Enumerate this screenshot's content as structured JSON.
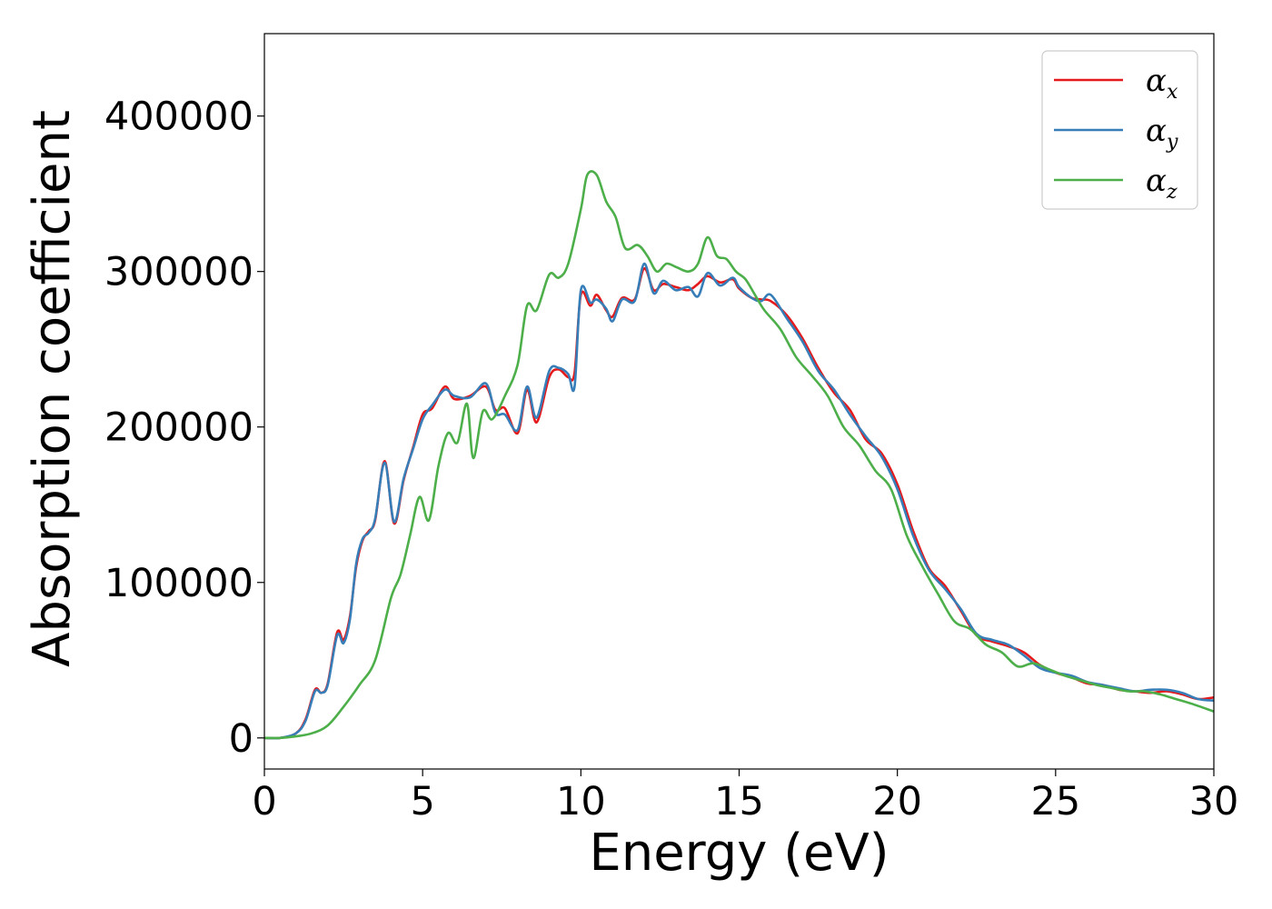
{
  "chart_data": {
    "type": "line",
    "title": "",
    "xlabel": "Energy (eV)",
    "ylabel": "Absorption coefficient",
    "xlim": [
      0,
      30
    ],
    "ylim": [
      -20000,
      453000
    ],
    "xticks": [
      0,
      5,
      10,
      15,
      20,
      25,
      30
    ],
    "xtick_labels": [
      "0",
      "5",
      "10",
      "15",
      "20",
      "25",
      "30"
    ],
    "yticks": [
      0,
      100000,
      200000,
      300000,
      400000
    ],
    "ytick_labels": [
      "0",
      "100000",
      "200000",
      "300000",
      "400000"
    ],
    "grid": false,
    "legend_position": "top-right",
    "series": [
      {
        "name": "α",
        "subscript": "x",
        "color": "#e41a1c",
        "x": [
          0,
          0.5,
          1,
          1.3,
          1.6,
          1.8,
          2.0,
          2.3,
          2.5,
          2.7,
          2.9,
          3.1,
          3.3,
          3.5,
          3.8,
          4.1,
          4.4,
          4.7,
          5.0,
          5.3,
          5.7,
          6.0,
          6.5,
          7.0,
          7.3,
          7.6,
          8.0,
          8.3,
          8.6,
          9.0,
          9.3,
          9.6,
          9.8,
          10.0,
          10.3,
          10.5,
          10.8,
          11.0,
          11.3,
          11.7,
          12.0,
          12.3,
          12.6,
          13.0,
          13.4,
          13.7,
          14.0,
          14.4,
          14.8,
          15.0,
          15.4,
          15.7,
          16.0,
          16.5,
          17.0,
          17.5,
          18.0,
          18.5,
          19.0,
          19.5,
          20.0,
          20.5,
          21.0,
          21.5,
          22.0,
          22.5,
          23.0,
          23.5,
          24.0,
          24.5,
          25.0,
          25.5,
          26.0,
          26.5,
          27.0,
          27.5,
          28.0,
          28.5,
          29.0,
          29.5,
          30.0
        ],
        "y": [
          0,
          0,
          3000,
          12000,
          31000,
          29000,
          35000,
          68000,
          63000,
          78000,
          110000,
          127000,
          133000,
          140000,
          178000,
          138000,
          166000,
          187000,
          208000,
          212000,
          226000,
          218000,
          220000,
          226000,
          211000,
          212000,
          196000,
          224000,
          203000,
          232000,
          237000,
          232000,
          235000,
          285000,
          278000,
          285000,
          275000,
          271000,
          283000,
          282000,
          302000,
          288000,
          292000,
          290000,
          288000,
          292000,
          297000,
          293000,
          295000,
          289000,
          283000,
          282000,
          281000,
          272000,
          257000,
          238000,
          222000,
          211000,
          192000,
          183000,
          163000,
          133000,
          109000,
          98000,
          82000,
          66000,
          62000,
          59000,
          55000,
          47000,
          42000,
          39000,
          35000,
          34000,
          31000,
          30000,
          29000,
          30000,
          28000,
          25000,
          26000
        ]
      },
      {
        "name": "α",
        "subscript": "y",
        "color": "#377eb8",
        "x": [
          0,
          0.5,
          1,
          1.3,
          1.6,
          1.8,
          2.0,
          2.3,
          2.5,
          2.7,
          2.9,
          3.1,
          3.3,
          3.5,
          3.8,
          4.1,
          4.4,
          4.7,
          5.0,
          5.3,
          5.7,
          6.0,
          6.5,
          7.0,
          7.3,
          7.6,
          8.0,
          8.3,
          8.6,
          9.0,
          9.3,
          9.6,
          9.8,
          10.0,
          10.3,
          10.5,
          10.8,
          11.0,
          11.3,
          11.7,
          12.0,
          12.3,
          12.6,
          13.0,
          13.4,
          13.7,
          14.0,
          14.4,
          14.8,
          15.0,
          15.4,
          15.7,
          16.0,
          16.5,
          17.0,
          17.5,
          18.0,
          18.5,
          19.0,
          19.5,
          20.0,
          20.5,
          21.0,
          21.5,
          22.0,
          22.5,
          23.0,
          23.5,
          24.0,
          24.5,
          25.0,
          25.5,
          26.0,
          26.5,
          27.0,
          27.5,
          28.0,
          28.5,
          29.0,
          29.5,
          30.0
        ],
        "y": [
          0,
          0,
          3000,
          11000,
          30000,
          29000,
          34000,
          66000,
          61000,
          76000,
          112000,
          128000,
          132000,
          141000,
          177000,
          139000,
          167000,
          186000,
          205000,
          214000,
          224000,
          220000,
          219000,
          228000,
          209000,
          208000,
          198000,
          226000,
          206000,
          236000,
          238000,
          234000,
          226000,
          288000,
          280000,
          282000,
          276000,
          268000,
          282000,
          281000,
          305000,
          286000,
          294000,
          288000,
          290000,
          284000,
          299000,
          291000,
          296000,
          290000,
          283000,
          281000,
          285000,
          270000,
          255000,
          236000,
          224000,
          208000,
          194000,
          181000,
          160000,
          130000,
          108000,
          96000,
          83000,
          67000,
          63000,
          60000,
          53000,
          45000,
          42000,
          40000,
          36000,
          34000,
          32000,
          30000,
          31000,
          31000,
          29000,
          25000,
          24000
        ]
      },
      {
        "name": "α",
        "subscript": "z",
        "color": "#4daf4a",
        "x": [
          0,
          0.5,
          1,
          1.5,
          2.0,
          2.5,
          3.0,
          3.5,
          4.0,
          4.3,
          4.6,
          4.9,
          5.2,
          5.5,
          5.8,
          6.1,
          6.4,
          6.6,
          6.9,
          7.2,
          7.6,
          8.0,
          8.3,
          8.6,
          9.0,
          9.3,
          9.6,
          10.0,
          10.2,
          10.5,
          10.8,
          11.1,
          11.4,
          11.8,
          12.1,
          12.4,
          12.7,
          13.0,
          13.4,
          13.7,
          14.0,
          14.3,
          14.6,
          14.9,
          15.2,
          15.5,
          15.8,
          16.3,
          16.8,
          17.3,
          17.8,
          18.3,
          18.8,
          19.3,
          19.8,
          20.3,
          20.8,
          21.3,
          21.8,
          22.3,
          22.8,
          23.3,
          23.8,
          24.3,
          24.8,
          25.3,
          25.8,
          26.3,
          26.8,
          27.3,
          27.8,
          28.3,
          28.8,
          29.3,
          30.0
        ],
        "y": [
          0,
          0,
          1000,
          3000,
          8000,
          20000,
          34000,
          50000,
          90000,
          105000,
          130000,
          155000,
          140000,
          175000,
          196000,
          190000,
          215000,
          180000,
          210000,
          205000,
          220000,
          240000,
          278000,
          275000,
          298000,
          296000,
          305000,
          340000,
          362000,
          362000,
          345000,
          335000,
          315000,
          317000,
          310000,
          300000,
          305000,
          303000,
          300000,
          305000,
          322000,
          310000,
          308000,
          300000,
          295000,
          285000,
          275000,
          263000,
          245000,
          233000,
          220000,
          200000,
          188000,
          172000,
          160000,
          130000,
          110000,
          92000,
          75000,
          70000,
          60000,
          55000,
          46000,
          48000,
          44000,
          40000,
          37000,
          34000,
          32000,
          30000,
          30000,
          28000,
          25000,
          22000,
          17000
        ]
      }
    ]
  }
}
